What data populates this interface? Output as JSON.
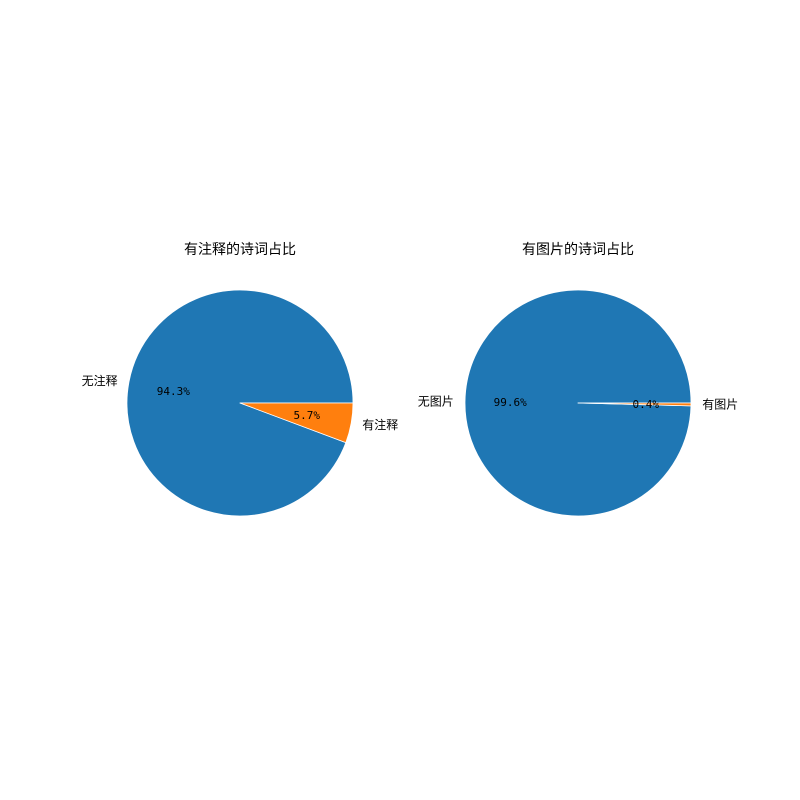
{
  "chart_data": [
    {
      "type": "pie",
      "title": "有注释的诗词占比",
      "categories": [
        "无注释",
        "有注释"
      ],
      "values": [
        94.3,
        5.7
      ],
      "value_labels": [
        "94.3%",
        "5.7%"
      ],
      "colors": [
        "#1f77b4",
        "#ff7f0e"
      ],
      "start_angle_deg": 0,
      "direction": "counterclockwise"
    },
    {
      "type": "pie",
      "title": "有图片的诗词占比",
      "categories": [
        "无图片",
        "有图片"
      ],
      "values": [
        99.6,
        0.4
      ],
      "value_labels": [
        "99.6%",
        "0.4%"
      ],
      "colors": [
        "#1f77b4",
        "#ff7f0e"
      ],
      "start_angle_deg": 0,
      "direction": "counterclockwise"
    }
  ]
}
